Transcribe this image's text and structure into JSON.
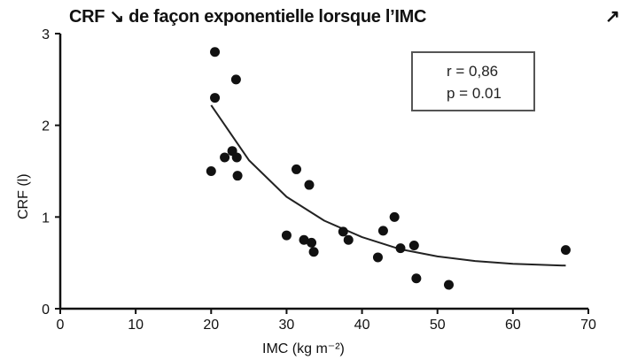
{
  "title": "CRF ↘ de façon exponentielle lorsque l’IMC",
  "title_right_glyph": "↗",
  "stats": {
    "r": "r = 0,86",
    "p": "p = 0.01"
  },
  "chart_data": {
    "type": "scatter",
    "xlabel": "IMC (kg m⁻²)",
    "ylabel": "CRF (l)",
    "xlim": [
      0,
      70
    ],
    "ylim": [
      0,
      3
    ],
    "xticks": [
      "0",
      "10",
      "20",
      "30",
      "40",
      "50",
      "60",
      "70"
    ],
    "yticks": [
      "0",
      "1",
      "2",
      "3"
    ],
    "grid": false,
    "points": [
      {
        "x": 20.5,
        "y": 2.8
      },
      {
        "x": 20.5,
        "y": 2.3
      },
      {
        "x": 23.3,
        "y": 2.5
      },
      {
        "x": 20.0,
        "y": 1.5
      },
      {
        "x": 21.8,
        "y": 1.65
      },
      {
        "x": 22.8,
        "y": 1.72
      },
      {
        "x": 23.4,
        "y": 1.65
      },
      {
        "x": 23.5,
        "y": 1.45
      },
      {
        "x": 31.3,
        "y": 1.52
      },
      {
        "x": 33.0,
        "y": 1.35
      },
      {
        "x": 30.0,
        "y": 0.8
      },
      {
        "x": 32.3,
        "y": 0.75
      },
      {
        "x": 33.3,
        "y": 0.72
      },
      {
        "x": 33.6,
        "y": 0.62
      },
      {
        "x": 37.5,
        "y": 0.84
      },
      {
        "x": 38.2,
        "y": 0.75
      },
      {
        "x": 42.1,
        "y": 0.56
      },
      {
        "x": 42.8,
        "y": 0.85
      },
      {
        "x": 44.3,
        "y": 1.0
      },
      {
        "x": 45.1,
        "y": 0.66
      },
      {
        "x": 46.9,
        "y": 0.69
      },
      {
        "x": 47.2,
        "y": 0.33
      },
      {
        "x": 51.5,
        "y": 0.26
      },
      {
        "x": 67.0,
        "y": 0.64
      }
    ],
    "fit_curve": {
      "type": "exponential",
      "x": [
        20,
        25,
        30,
        35,
        40,
        45,
        50,
        55,
        60,
        67
      ],
      "y": [
        2.22,
        1.62,
        1.22,
        0.96,
        0.78,
        0.65,
        0.57,
        0.52,
        0.49,
        0.47
      ]
    }
  }
}
